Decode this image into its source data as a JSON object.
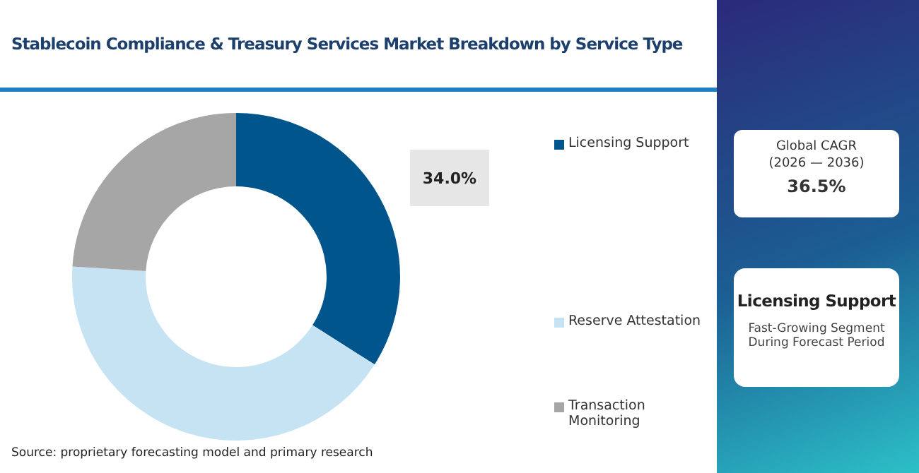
{
  "chart_data": {
    "type": "donut",
    "title": "Stablecoin Compliance & Treasury Services Market Breakdown by Service Type",
    "categories": [
      "Licensing Support",
      "Reserve Attestation",
      "Transaction Monitoring"
    ],
    "values": [
      34,
      42,
      24
    ],
    "colors": [
      "#00558c",
      "#c5e3f3",
      "#a6a6a6"
    ],
    "value_labels": [
      "34.0%",
      null,
      null
    ],
    "legend": "right",
    "annotations": [
      "Source: proprietary forecasting model and primary research",
      "Global CAGR",
      "(2026 — 2036)",
      "36.5%",
      "Licensing Support",
      "Fast-Growing Segment During Forecast Period"
    ]
  }
}
